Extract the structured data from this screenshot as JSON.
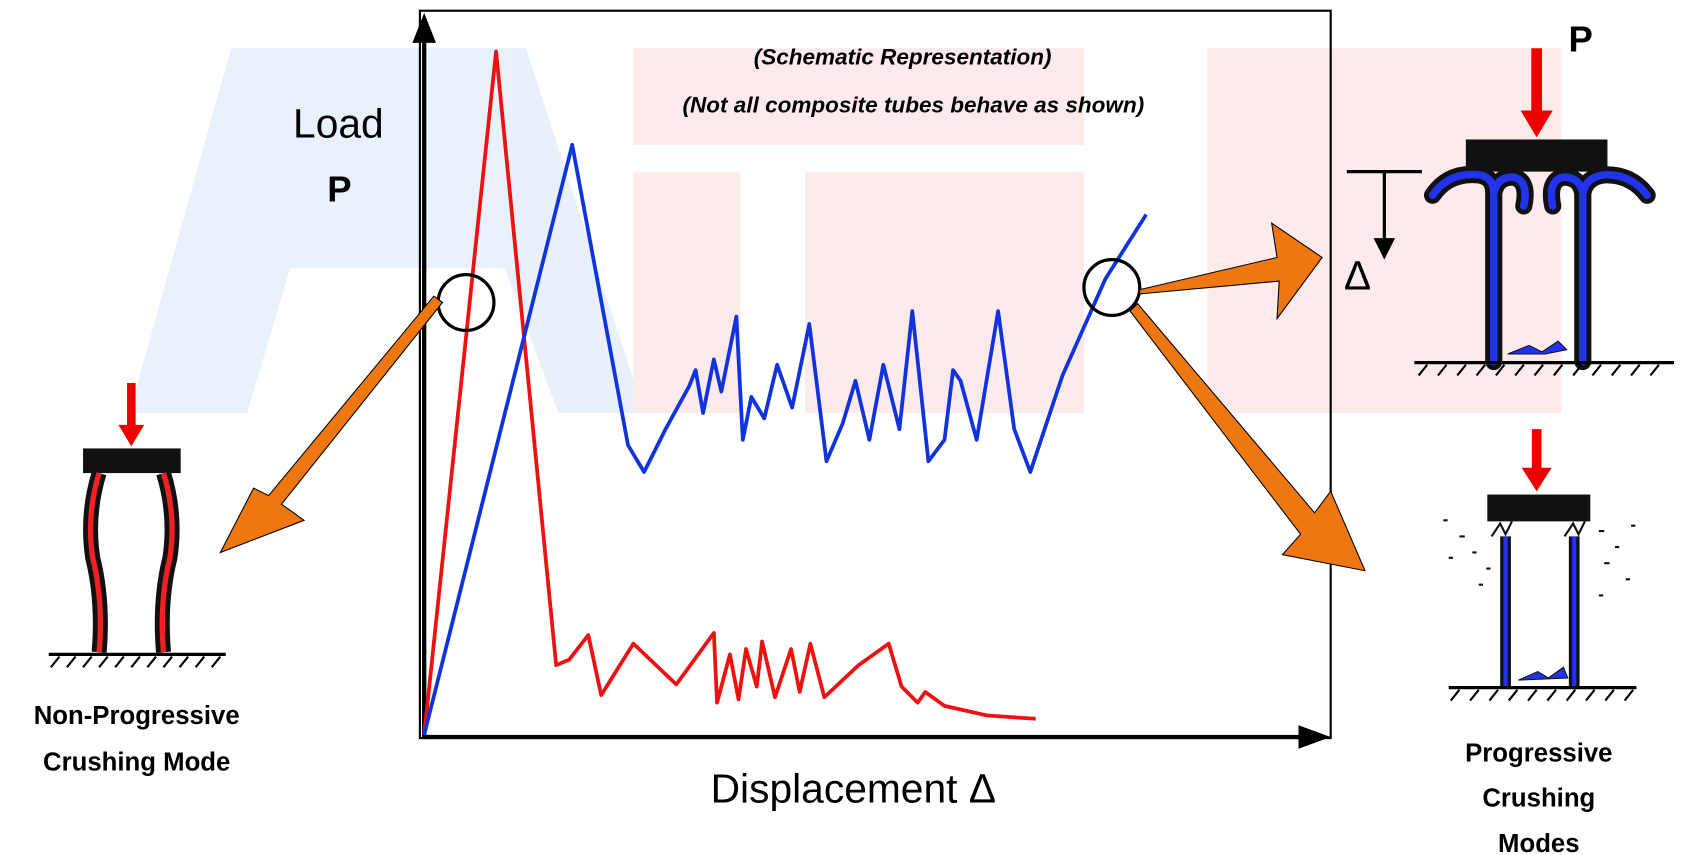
{
  "chart_panel": {
    "note_lines": [
      "(Schematic Representation)",
      "(Not all composite tubes behave as shown)"
    ],
    "y_axis_label": "Load",
    "y_axis_symbol": "P",
    "x_axis_label": "Displacement  Δ"
  },
  "left_figure": {
    "caption_lines": [
      "Non-Progressive",
      "Crushing Mode"
    ]
  },
  "right_figure": {
    "load_label": "P",
    "displacement_label": "Δ",
    "caption_lines": [
      "Progressive",
      "Crushing",
      "Modes"
    ]
  }
}
